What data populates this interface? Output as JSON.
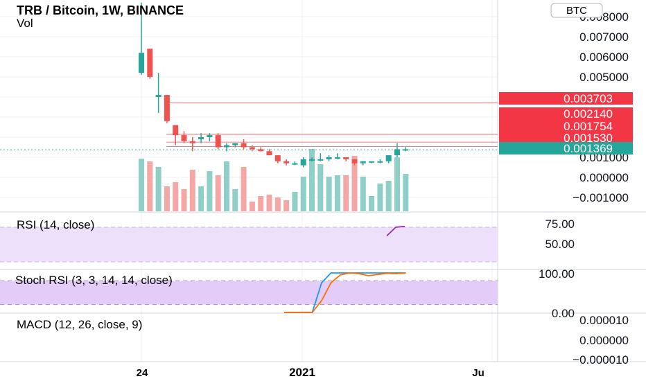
{
  "header": {
    "title": "TRB / Bitcoin, 1W, BINANCE",
    "vol_label": "Vol",
    "currency_button": "BTC"
  },
  "colors": {
    "up": "#26a69a",
    "down": "#ef5350",
    "up_vol": "#8fcfc8",
    "down_vol": "#f4a7a5",
    "price_line": "#ef5350",
    "last_price": "#26a69a",
    "rsi_band": "#ede0fb",
    "rsi_line": "#9c27b0",
    "stoch_k": "#2196f3",
    "stoch_d": "#ff6d00",
    "axis_text": "#131722",
    "grid": "#eef0f3"
  },
  "chart_data": {
    "type": "candlestick",
    "title": "TRB / Bitcoin, 1W, BINANCE",
    "main_y_axis": {
      "ticks": [
        0.008,
        0.007,
        0.006,
        0.005,
        0.004,
        0.003,
        0.002,
        0.001,
        0.0,
        -0.001
      ],
      "tick_labels": [
        "0.008000",
        "0.007000",
        "0.006000",
        "0.005000",
        "0.004000",
        "0.003000",
        "0.002000",
        "0.001000",
        "0.000000",
        "−0.001000"
      ],
      "ylim": [
        -0.0014,
        0.0081
      ]
    },
    "x_axis_labels": [
      "24",
      "2021",
      "Ju"
    ],
    "candles": [
      {
        "o": 0.0052,
        "h": 0.0087,
        "l": 0.0051,
        "c": 0.0062
      },
      {
        "o": 0.0064,
        "h": 0.0064,
        "l": 0.0049,
        "c": 0.005
      },
      {
        "o": 0.004,
        "h": 0.0052,
        "l": 0.0032,
        "c": 0.0041
      },
      {
        "o": 0.0041,
        "h": 0.0041,
        "l": 0.0027,
        "c": 0.0028
      },
      {
        "o": 0.0026,
        "h": 0.0026,
        "l": 0.0016,
        "c": 0.0021
      },
      {
        "o": 0.0021,
        "h": 0.0023,
        "l": 0.0017,
        "c": 0.0018
      },
      {
        "o": 0.0018,
        "h": 0.002,
        "l": 0.0013,
        "c": 0.0017
      },
      {
        "o": 0.0019,
        "h": 0.0022,
        "l": 0.0017,
        "c": 0.002
      },
      {
        "o": 0.002,
        "h": 0.0022,
        "l": 0.0018,
        "c": 0.0021
      },
      {
        "o": 0.0021,
        "h": 0.0022,
        "l": 0.0014,
        "c": 0.0015
      },
      {
        "o": 0.0015,
        "h": 0.0017,
        "l": 0.0013,
        "c": 0.0016
      },
      {
        "o": 0.0016,
        "h": 0.0017,
        "l": 0.0015,
        "c": 0.0017
      },
      {
        "o": 0.0017,
        "h": 0.0019,
        "l": 0.0014,
        "c": 0.0015
      },
      {
        "o": 0.0015,
        "h": 0.0016,
        "l": 0.0013,
        "c": 0.0014
      },
      {
        "o": 0.0014,
        "h": 0.0015,
        "l": 0.0013,
        "c": 0.0013
      },
      {
        "o": 0.0013,
        "h": 0.0014,
        "l": 0.0011,
        "c": 0.0011
      },
      {
        "o": 0.0011,
        "h": 0.0011,
        "l": 0.0007,
        "c": 0.0008
      },
      {
        "o": 0.0008,
        "h": 0.0009,
        "l": 0.0006,
        "c": 0.0007
      },
      {
        "o": 0.0007,
        "h": 0.0008,
        "l": 0.0006,
        "c": 0.0007
      },
      {
        "o": 0.0006,
        "h": 0.001,
        "l": 0.0005,
        "c": 0.0009
      },
      {
        "o": 0.0009,
        "h": 0.001,
        "l": 0.0008,
        "c": 0.0009
      },
      {
        "o": 0.0009,
        "h": 0.0012,
        "l": 0.0008,
        "c": 0.0009
      },
      {
        "o": 0.0009,
        "h": 0.0011,
        "l": 0.0008,
        "c": 0.001
      },
      {
        "o": 0.001,
        "h": 0.0012,
        "l": 0.0009,
        "c": 0.001
      },
      {
        "o": 0.001,
        "h": 0.001,
        "l": 0.0008,
        "c": 0.0009
      },
      {
        "o": 0.0009,
        "h": 0.0009,
        "l": 0.0006,
        "c": 0.0007
      },
      {
        "o": 0.0007,
        "h": 0.0008,
        "l": 0.0006,
        "c": 0.0008
      },
      {
        "o": 0.0008,
        "h": 0.0008,
        "l": 0.0007,
        "c": 0.0008
      },
      {
        "o": 0.0008,
        "h": 0.0009,
        "l": 0.0007,
        "c": 0.0008
      },
      {
        "o": 0.0008,
        "h": 0.0011,
        "l": 0.0007,
        "c": 0.0011
      },
      {
        "o": 0.0011,
        "h": 0.0017,
        "l": 0.001,
        "c": 0.0014
      },
      {
        "o": 0.0014,
        "h": 0.0015,
        "l": 0.0013,
        "c": 0.0014
      }
    ],
    "volume": [
      0.38,
      0.36,
      0.32,
      0.18,
      0.21,
      0.16,
      0.3,
      0.18,
      0.29,
      0.26,
      0.36,
      0.16,
      0.32,
      0.07,
      0.11,
      0.12,
      0.1,
      0.08,
      0.14,
      0.25,
      0.45,
      0.34,
      0.25,
      0.26,
      0.26,
      0.4,
      0.25,
      0.11,
      0.2,
      0.22,
      0.39,
      0.27
    ],
    "price_lines": [
      {
        "value": 0.003703,
        "label": "0.003703",
        "kind": "level"
      },
      {
        "value": 0.00214,
        "label": "0.002140",
        "kind": "level"
      },
      {
        "value": 0.001754,
        "label": "0.001754",
        "kind": "level"
      },
      {
        "value": 0.00153,
        "label": "0.001530",
        "kind": "level"
      },
      {
        "value": 0.001369,
        "label": "0.001369",
        "kind": "last"
      }
    ],
    "rsi": {
      "label": "RSI (14, close)",
      "ticks": [
        "75.00",
        "50.00"
      ],
      "band": [
        30,
        70
      ],
      "values": [
        60,
        70,
        71
      ]
    },
    "stoch_rsi": {
      "label": "Stoch RSI (3, 3, 14, 14, close)",
      "ticks": [
        "100.00",
        "0.00"
      ],
      "band": [
        20,
        80
      ],
      "k": [
        0,
        0,
        0,
        0,
        75,
        100,
        100,
        100,
        100,
        100,
        100,
        100,
        100,
        100
      ],
      "d": [
        0,
        0,
        0,
        0,
        30,
        75,
        95,
        100,
        98,
        93,
        96,
        99,
        98,
        100
      ]
    },
    "macd": {
      "label": "MACD (12, 26, close, 9)",
      "ticks": [
        "0.000010",
        "0.000000",
        "−0.000010"
      ]
    }
  }
}
